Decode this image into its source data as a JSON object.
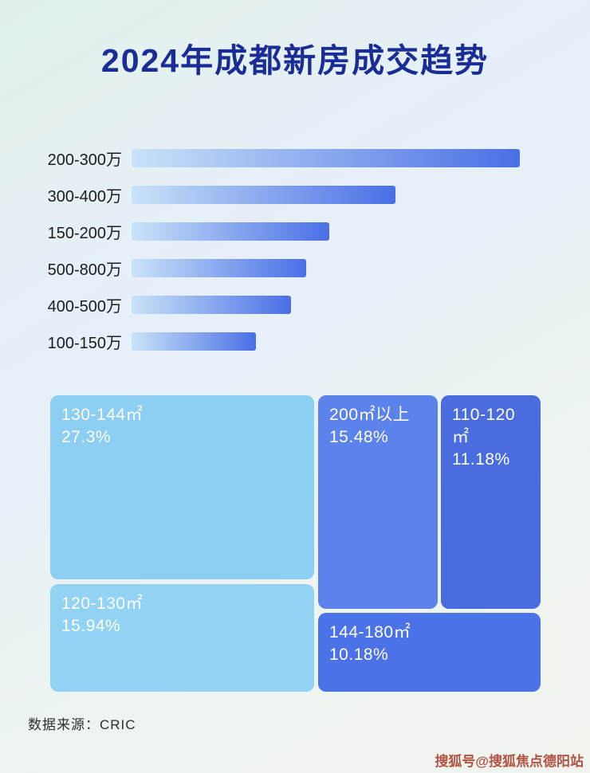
{
  "page": {
    "title": "2024年成都新房成交趋势",
    "source_label": "数据来源：CRIC",
    "watermark": "搜狐号@搜狐焦点德阳站"
  },
  "colors": {
    "title_text": "#1a2d96",
    "bar_gradient_start": "#cae3f8",
    "bar_gradient_end": "#4a6fe6",
    "watermark_text": "#aa3c2d",
    "background": [
      "#e2f2ea",
      "#e6effa",
      "#f1f4ed"
    ]
  },
  "chart_data": [
    {
      "type": "bar",
      "orientation": "horizontal",
      "categories": [
        "200-300万",
        "300-400万",
        "150-200万",
        "500-800万",
        "400-500万",
        "100-150万"
      ],
      "values": [
        100,
        68,
        51,
        45,
        41,
        32
      ],
      "value_note": "no numeric axis shown; values are bar lengths as % of longest bar",
      "xlabel": "",
      "ylabel": "",
      "grid": false,
      "legend": false
    },
    {
      "type": "treemap",
      "labels": [
        "130-144㎡",
        "200㎡以上",
        "110-120㎡",
        "120-130㎡",
        "144-180㎡"
      ],
      "values": [
        27.3,
        15.48,
        11.18,
        15.94,
        10.18
      ],
      "value_labels": [
        "27.3%",
        "15.48%",
        "11.18%",
        "15.94%",
        "10.18%"
      ],
      "colors": [
        "#8ccff3",
        "#5b83eb",
        "#4a6cdf",
        "#92d3f3",
        "#4b72e6"
      ],
      "legend": false
    }
  ]
}
